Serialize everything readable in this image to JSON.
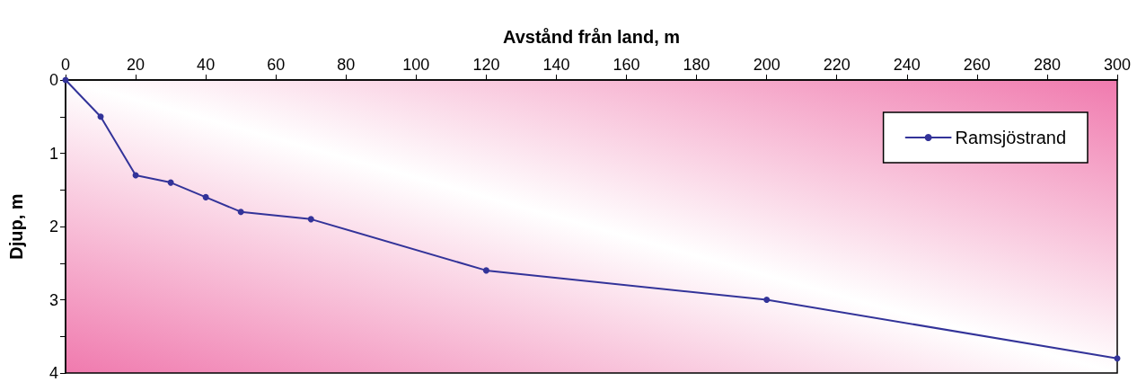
{
  "chart_data": {
    "type": "line",
    "xlabel": "Avstånd från land, m",
    "ylabel": "Djup, m",
    "x": [
      0,
      10,
      20,
      30,
      40,
      50,
      70,
      120,
      200,
      300
    ],
    "series": [
      {
        "name": "Ramsjöstrand",
        "color": "#333399",
        "values": [
          0,
          0.5,
          1.3,
          1.4,
          1.6,
          1.8,
          1.9,
          2.6,
          3.0,
          3.8
        ]
      }
    ],
    "xlim": [
      0,
      300
    ],
    "xticks": [
      0,
      20,
      40,
      60,
      80,
      100,
      120,
      140,
      160,
      180,
      200,
      220,
      240,
      260,
      280,
      300
    ],
    "ylim": [
      4,
      0
    ],
    "yticks": [
      0,
      {
        "value": 0.5,
        "label": null
      },
      1,
      {
        "value": 1.5,
        "label": null
      },
      2,
      {
        "value": 2.5,
        "label": null
      },
      3,
      {
        "value": 3.5,
        "label": null
      },
      4
    ],
    "legend": "top right",
    "marker": "circle",
    "line_style": "solid",
    "grid": false
  }
}
